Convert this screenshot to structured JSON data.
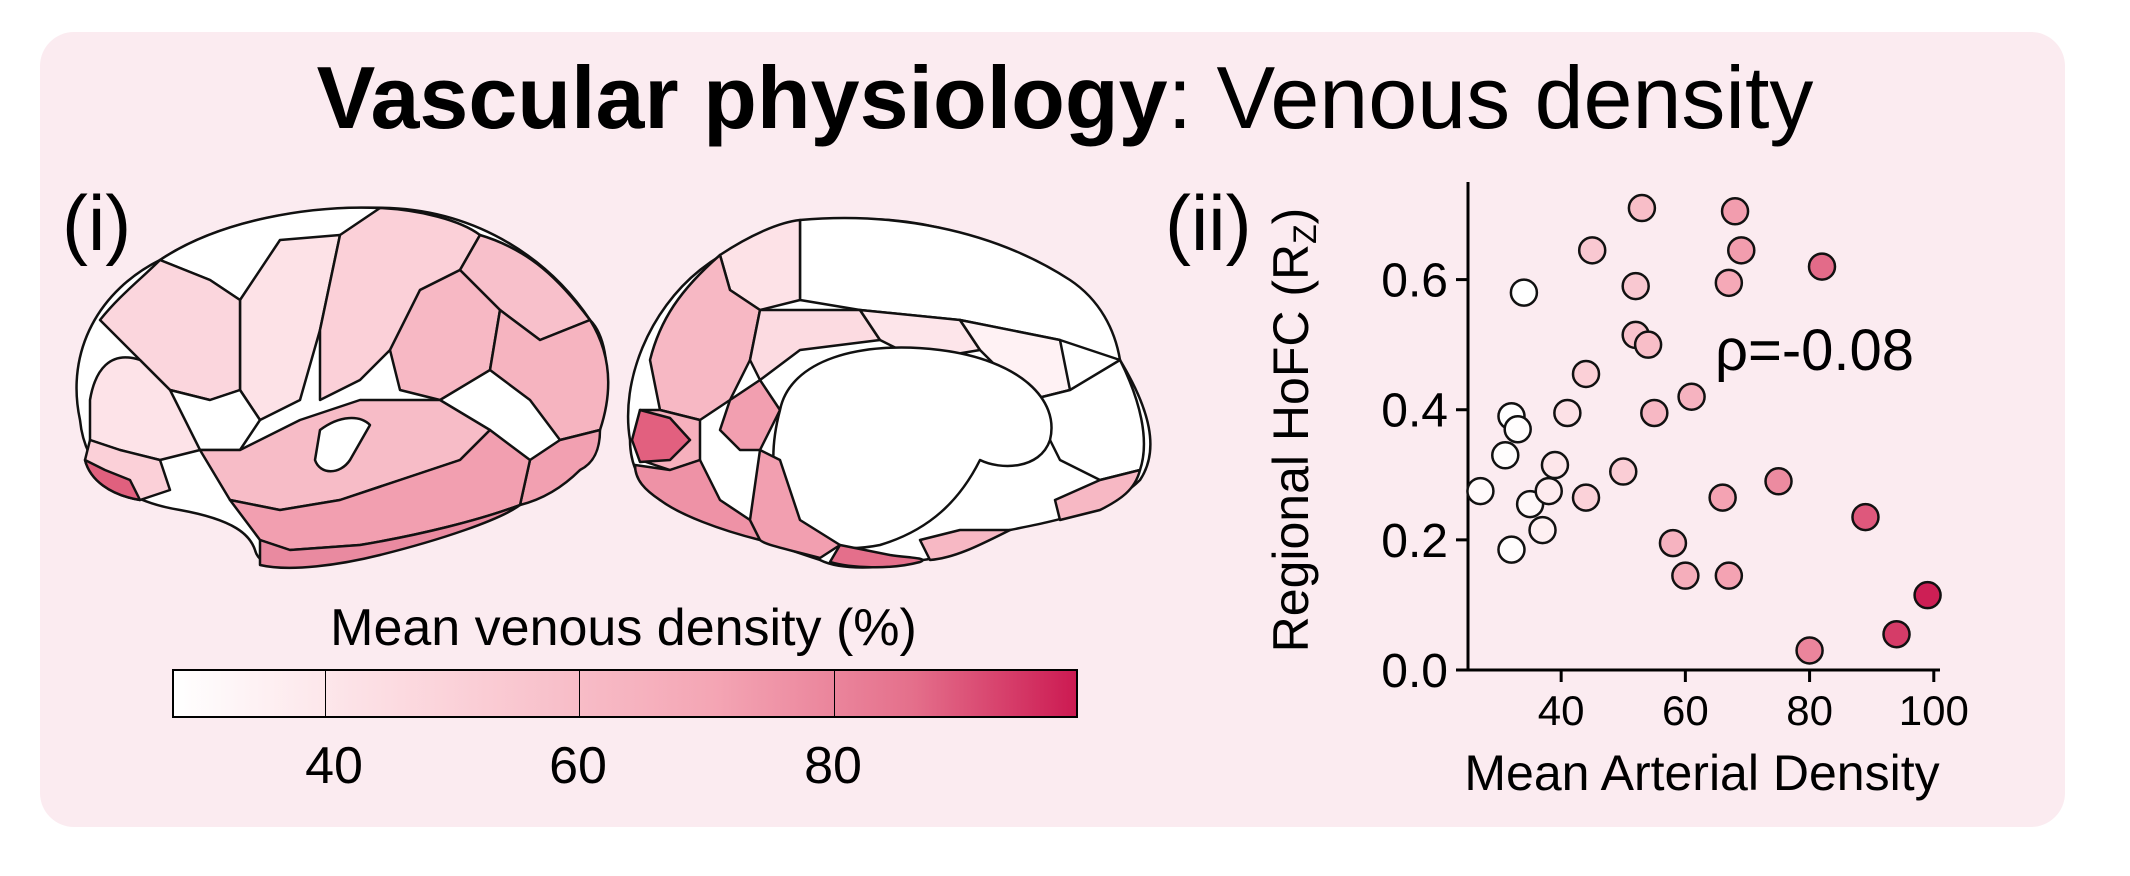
{
  "title": {
    "bold": "Vascular physiology",
    "rest": ": Venous density"
  },
  "panel_labels": {
    "left": "(i)",
    "right": "(ii)"
  },
  "colorbar": {
    "title": "Mean venous density (%)",
    "ticks": [
      "40",
      "60",
      "80"
    ],
    "tick_values": [
      40,
      60,
      80
    ],
    "range": [
      26,
      97
    ],
    "colors": [
      "#ffffff",
      "#fbd3da",
      "#f4a5b4",
      "#e46f8b",
      "#cc1a52"
    ]
  },
  "chart_data": {
    "type": "scatter",
    "xlabel": "Mean Arterial Density",
    "ylabel": "Regional HoFC (R",
    "ylabel_sub": "Z",
    "ylabel_end": ")",
    "xticks": [
      "40",
      "60",
      "80",
      "100"
    ],
    "xtick_values": [
      40,
      60,
      80,
      100
    ],
    "yticks": [
      "0.0",
      "0.2",
      "0.4",
      "0.6"
    ],
    "ytick_values": [
      0.0,
      0.2,
      0.4,
      0.6
    ],
    "xlim": [
      25,
      101
    ],
    "ylim": [
      0.0,
      0.75
    ],
    "annotation": "ρ=-0.08",
    "grid": false,
    "points": [
      {
        "x": 27,
        "y": 0.275,
        "c": 28
      },
      {
        "x": 31,
        "y": 0.33,
        "c": 27
      },
      {
        "x": 32,
        "y": 0.39,
        "c": 26
      },
      {
        "x": 33,
        "y": 0.37,
        "c": 27
      },
      {
        "x": 34,
        "y": 0.58,
        "c": 26
      },
      {
        "x": 32,
        "y": 0.185,
        "c": 27
      },
      {
        "x": 35,
        "y": 0.255,
        "c": 29
      },
      {
        "x": 37,
        "y": 0.215,
        "c": 32
      },
      {
        "x": 38,
        "y": 0.275,
        "c": 34
      },
      {
        "x": 39,
        "y": 0.315,
        "c": 36
      },
      {
        "x": 41,
        "y": 0.395,
        "c": 38
      },
      {
        "x": 44,
        "y": 0.265,
        "c": 44
      },
      {
        "x": 44,
        "y": 0.455,
        "c": 45
      },
      {
        "x": 45,
        "y": 0.645,
        "c": 48
      },
      {
        "x": 50,
        "y": 0.305,
        "c": 46
      },
      {
        "x": 52,
        "y": 0.59,
        "c": 48
      },
      {
        "x": 52,
        "y": 0.515,
        "c": 50
      },
      {
        "x": 53,
        "y": 0.71,
        "c": 52
      },
      {
        "x": 54,
        "y": 0.5,
        "c": 52
      },
      {
        "x": 55,
        "y": 0.395,
        "c": 54
      },
      {
        "x": 58,
        "y": 0.195,
        "c": 56
      },
      {
        "x": 60,
        "y": 0.145,
        "c": 58
      },
      {
        "x": 61,
        "y": 0.42,
        "c": 56
      },
      {
        "x": 66,
        "y": 0.265,
        "c": 62
      },
      {
        "x": 67,
        "y": 0.145,
        "c": 62
      },
      {
        "x": 67,
        "y": 0.595,
        "c": 60
      },
      {
        "x": 68,
        "y": 0.705,
        "c": 64
      },
      {
        "x": 69,
        "y": 0.645,
        "c": 64
      },
      {
        "x": 75,
        "y": 0.29,
        "c": 70
      },
      {
        "x": 80,
        "y": 0.03,
        "c": 72
      },
      {
        "x": 82,
        "y": 0.62,
        "c": 80
      },
      {
        "x": 89,
        "y": 0.235,
        "c": 84
      },
      {
        "x": 94,
        "y": 0.055,
        "c": 90
      },
      {
        "x": 99,
        "y": 0.115,
        "c": 96
      }
    ]
  }
}
